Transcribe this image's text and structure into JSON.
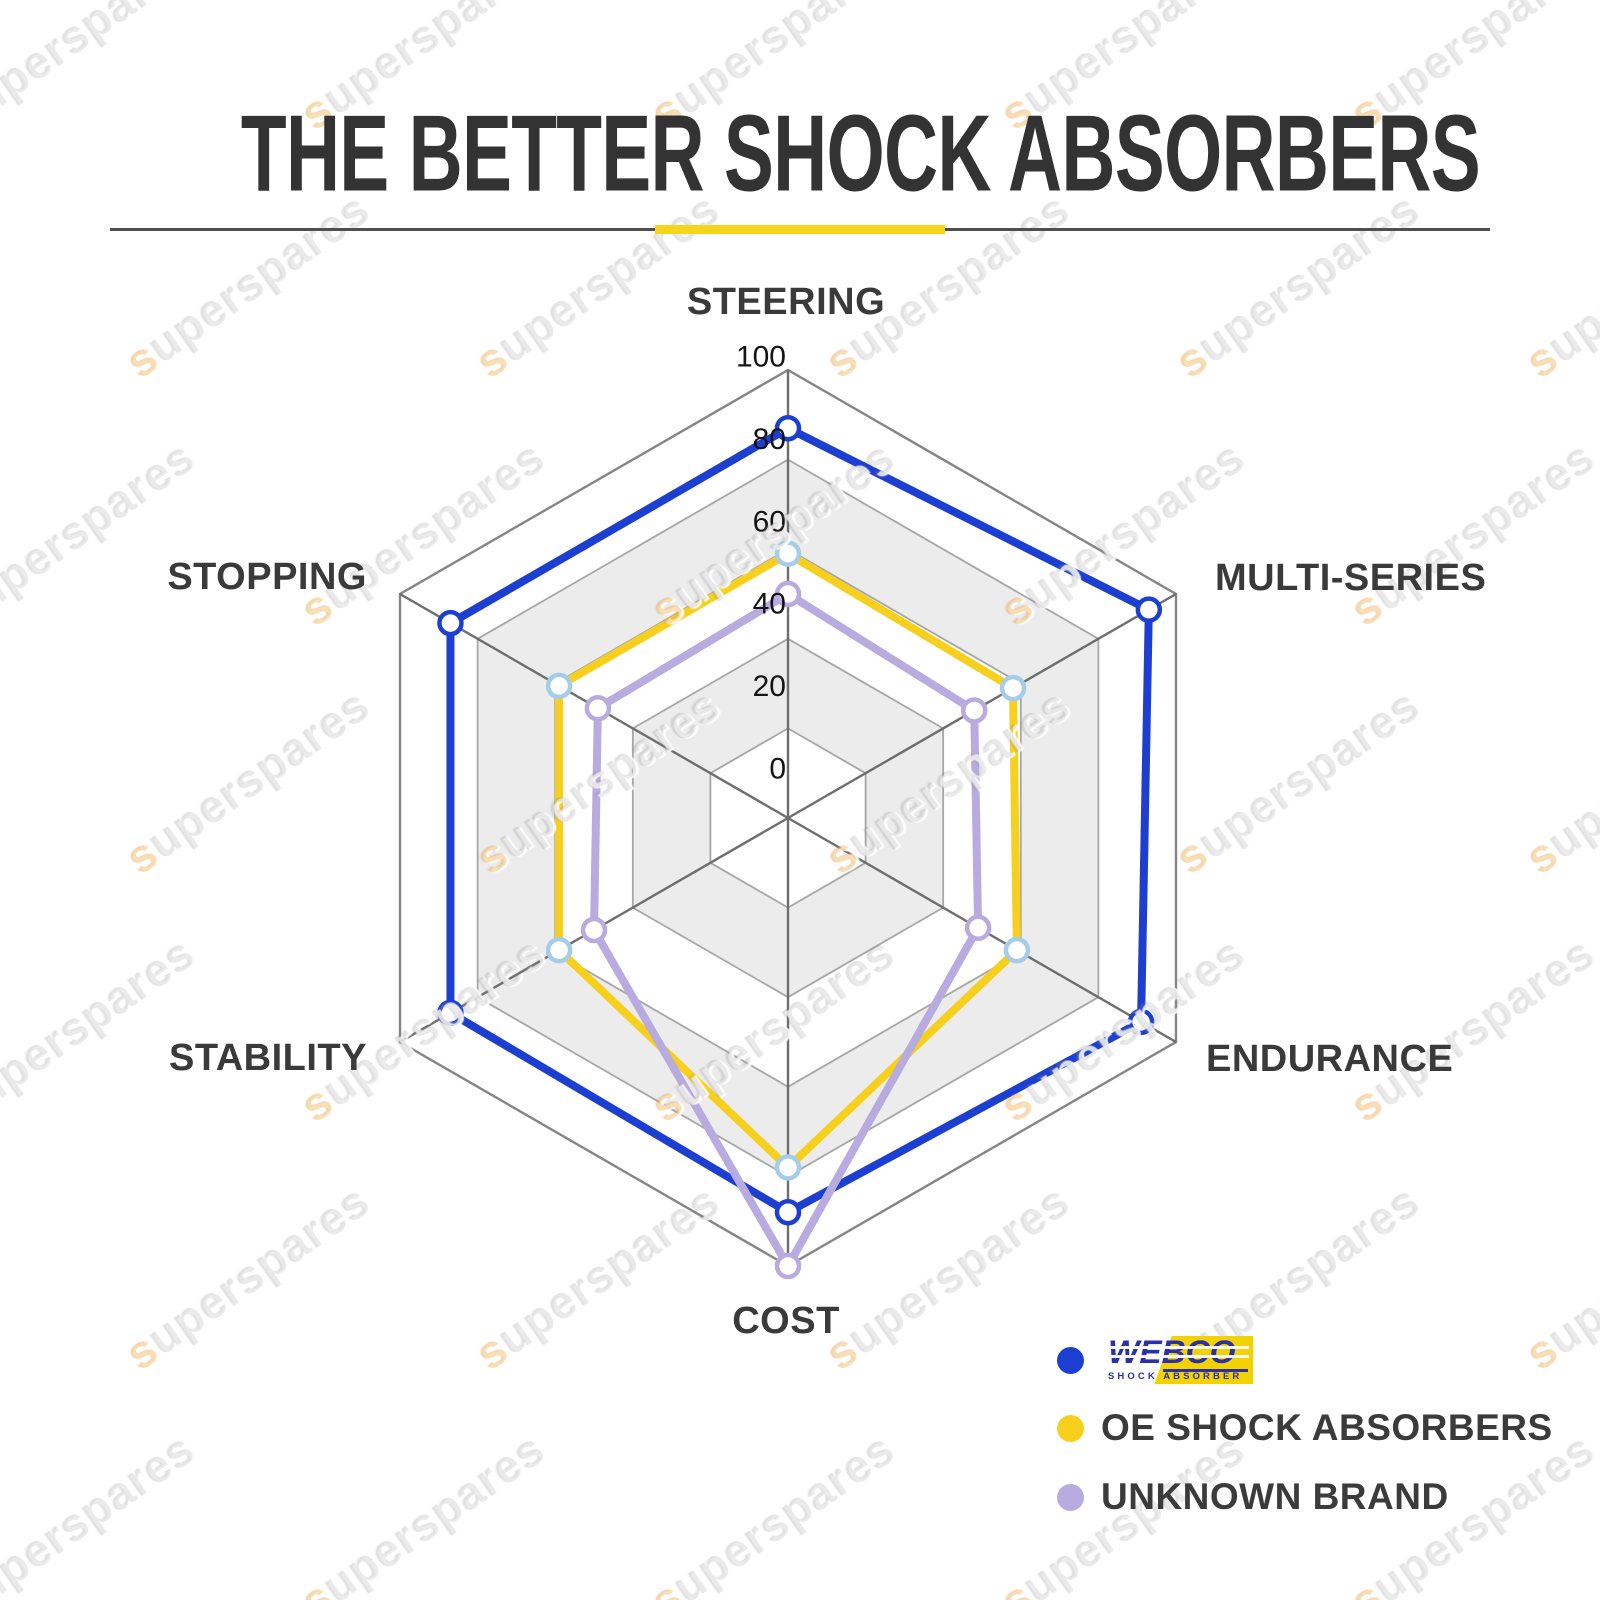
{
  "title": "THE BETTER SHOCK ABSORBERS",
  "watermark": {
    "text": "superspares"
  },
  "colors": {
    "webco_blue": "#1d3fd1",
    "oe_yellow": "#f7d01e",
    "unknown_purple": "#b7abdf",
    "oe_marker_ring": "#a5cdea",
    "grid_band_gray": "#ececec",
    "grid_ring_stroke": "#a6a6a6",
    "grid_spoke_stroke": "#6e6e6e",
    "grid_outer_stroke": "#858585",
    "accent_yellow": "#f5d519",
    "title_color": "#333333",
    "label_color": "#3a3a3a"
  },
  "chart_data": {
    "type": "radar",
    "title": "THE BETTER SHOCK ABSORBERS",
    "categories": [
      "STEERING",
      "MULTI-SERIES",
      "ENDURANCE",
      "COST",
      "STABILITY",
      "STOPPING"
    ],
    "axis_min": 0,
    "axis_max": 100,
    "tick_interval": 20,
    "tick_labels": [
      "100",
      "80",
      "60",
      "40",
      "20",
      "0"
    ],
    "grid": "hexagonal rings with alternating white/gray bands, radial spokes",
    "legend_position": "bottom-right",
    "series": [
      {
        "name": "WEBCO SHOCK ABSORBER",
        "color": "#1d3fd1",
        "marker_ring_color": "#1d3fd1",
        "values": [
          87,
          93,
          91,
          88,
          87,
          87
        ]
      },
      {
        "name": "OE SHOCK ABSORBERS",
        "color": "#f7d01e",
        "marker_ring_color": "#a5cdea",
        "values": [
          59,
          58,
          59,
          78,
          59,
          59
        ]
      },
      {
        "name": "UNKNOWN BRAND",
        "color": "#b7abdf",
        "marker_ring_color": "#b7abdf",
        "values": [
          50,
          48,
          49,
          100,
          50,
          49
        ]
      }
    ]
  },
  "legend": {
    "items": [
      {
        "label": "WEBCO",
        "sub_label": "SHOCK ABSORBER",
        "style": "logo",
        "dot_color": "#1d3fd1"
      },
      {
        "label": "OE SHOCK ABSORBERS",
        "style": "text",
        "dot_color": "#f7d01e"
      },
      {
        "label": "UNKNOWN BRAND",
        "style": "text",
        "dot_color": "#b7abdf"
      }
    ]
  }
}
